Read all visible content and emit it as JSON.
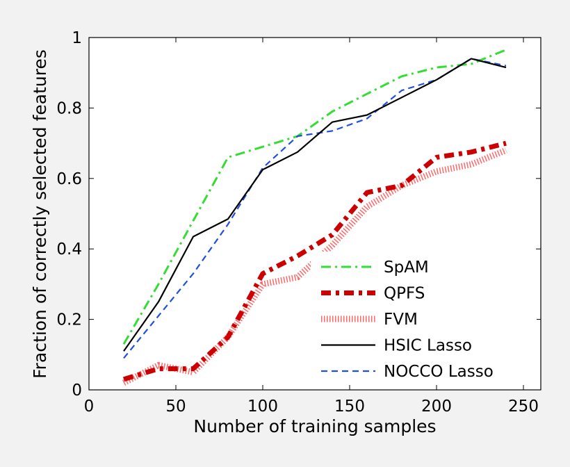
{
  "chart_data": {
    "type": "line",
    "title": "",
    "xlabel": "Number of training samples",
    "ylabel": "Fraction of correctly selected features",
    "xlim": [
      0,
      260
    ],
    "ylim": [
      0,
      1
    ],
    "xticks": [
      0,
      50,
      100,
      150,
      200,
      250
    ],
    "yticks": [
      0,
      0.2,
      0.4,
      0.6,
      0.8,
      1
    ],
    "xtick_labels": [
      "0",
      "50",
      "100",
      "150",
      "200",
      "250"
    ],
    "ytick_labels": [
      "0",
      "0.2",
      "0.4",
      "0.6",
      "0.8",
      "1"
    ],
    "grid": false,
    "legend_position": "bottom-right",
    "x": [
      20,
      40,
      60,
      80,
      100,
      120,
      140,
      160,
      180,
      200,
      220,
      240
    ],
    "series": [
      {
        "name": "SpAM",
        "color": "#33dd33",
        "style": "dashdot",
        "values": [
          0.13,
          0.3,
          0.48,
          0.66,
          0.69,
          0.72,
          0.79,
          0.84,
          0.89,
          0.915,
          0.925,
          0.965
        ]
      },
      {
        "name": "QPFS",
        "color": "#cc0000",
        "style": "thick-dashdot",
        "values": [
          0.03,
          0.06,
          0.06,
          0.15,
          0.33,
          0.38,
          0.44,
          0.56,
          0.58,
          0.66,
          0.675,
          0.7
        ]
      },
      {
        "name": "FVM",
        "color": "#ff6666",
        "style": "hatched",
        "values": [
          0.02,
          0.07,
          0.05,
          0.15,
          0.3,
          0.32,
          0.41,
          0.52,
          0.58,
          0.62,
          0.64,
          0.68
        ]
      },
      {
        "name": "HSIC Lasso",
        "color": "#000000",
        "style": "solid",
        "values": [
          0.11,
          0.25,
          0.435,
          0.485,
          0.625,
          0.675,
          0.76,
          0.78,
          0.83,
          0.88,
          0.94,
          0.915
        ]
      },
      {
        "name": "NOCCO Lasso",
        "color": "#1f4fe0",
        "style": "dashed",
        "values": [
          0.09,
          0.21,
          0.33,
          0.47,
          0.63,
          0.72,
          0.735,
          0.77,
          0.85,
          0.88,
          0.94,
          0.92
        ]
      }
    ]
  }
}
